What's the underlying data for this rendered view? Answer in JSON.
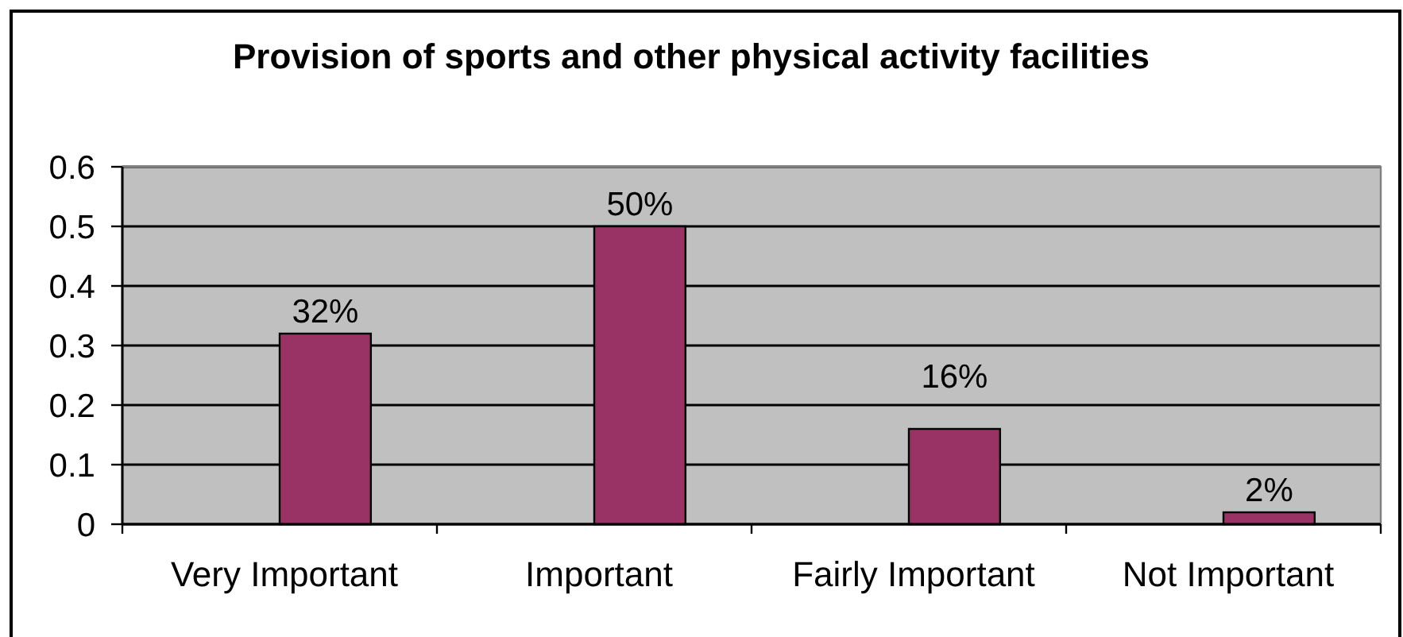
{
  "chart_data": {
    "type": "bar",
    "title": "Provision of sports and other physical activity facilities",
    "categories": [
      "Very Important",
      "Important",
      "Fairly Important",
      "Not Important"
    ],
    "values": [
      0.32,
      0.5,
      0.16,
      0.02
    ],
    "color": "#993366",
    "value_labels": [
      "32%",
      "50%",
      "16%",
      "2%"
    ],
    "ylim": [
      0,
      0.6
    ],
    "yticks": [
      0,
      0.1,
      0.2,
      0.3,
      0.4,
      0.5,
      0.6
    ],
    "grid": "y"
  }
}
